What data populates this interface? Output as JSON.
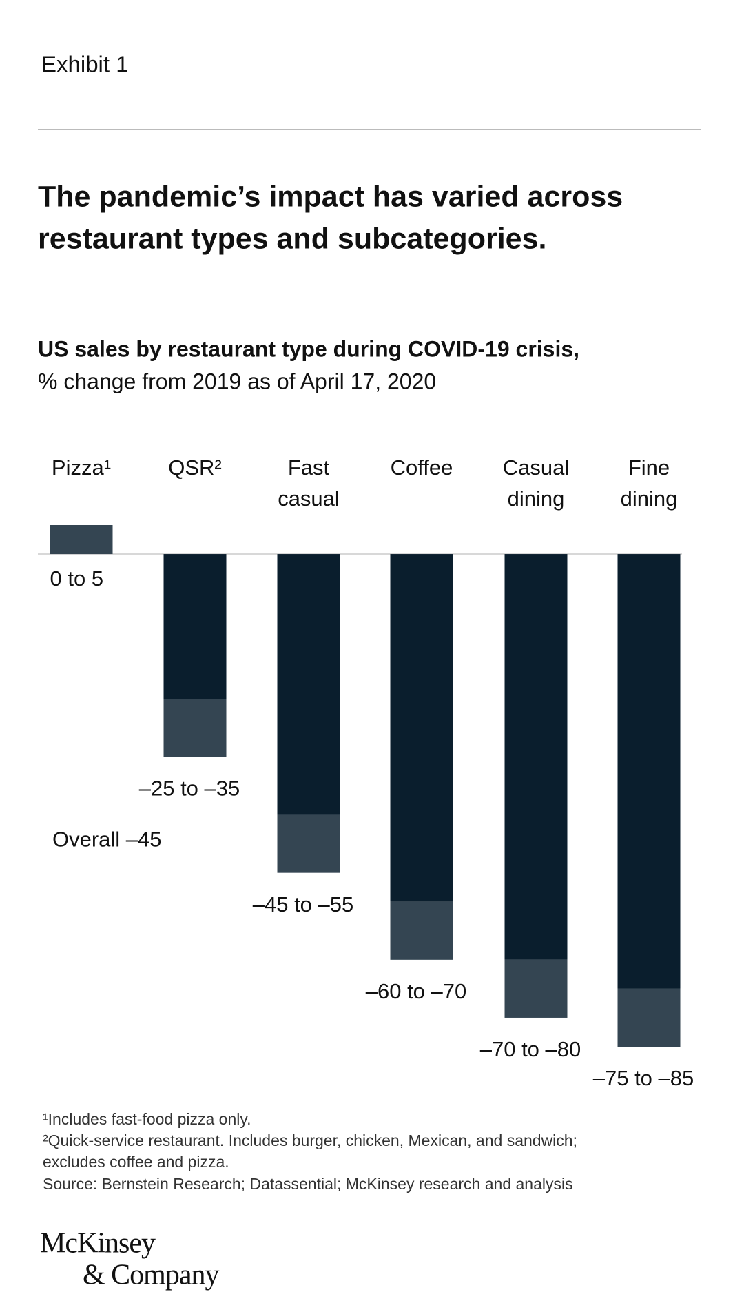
{
  "exhibit": "Exhibit 1",
  "chart_data": {
    "type": "range_bar",
    "title": [
      "The pandemic’s impact has varied across",
      "restaurant types and subcategories."
    ],
    "subtitle": "US sales by restaurant type during COVID-19 crisis,",
    "subtitle_note": "% change from 2019 as of April 17, 2020",
    "categories": [
      [
        "Pizza¹"
      ],
      [
        "QSR²"
      ],
      [
        "Fast",
        "casual"
      ],
      [
        "Coffee"
      ],
      [
        "Casual",
        "dining"
      ],
      [
        "Fine",
        "dining"
      ]
    ],
    "from": [
      0,
      -25,
      -45,
      -60,
      -70,
      -75
    ],
    "to": [
      5,
      -35,
      -55,
      -70,
      -80,
      -85
    ],
    "value_labels": [
      "0 to 5",
      "–25 to –35",
      "–45 to –55",
      "–60 to –70",
      "–70 to –80",
      "–75 to –85"
    ],
    "colors": {
      "base": "#0a1e2d",
      "range": "#344552"
    },
    "ylim": [
      -85,
      5
    ],
    "annotation": {
      "label": "Overall –45",
      "value": -45
    }
  },
  "footnotes": [
    "¹Includes fast-food pizza only.",
    "²Quick-service restaurant. Includes burger, chicken, Mexican, and sandwich;",
    "excludes coffee and pizza.",
    "Source: Bernstein Research; Datassential; McKinsey research and analysis"
  ],
  "logo": [
    "McKinsey",
    "& Company"
  ]
}
